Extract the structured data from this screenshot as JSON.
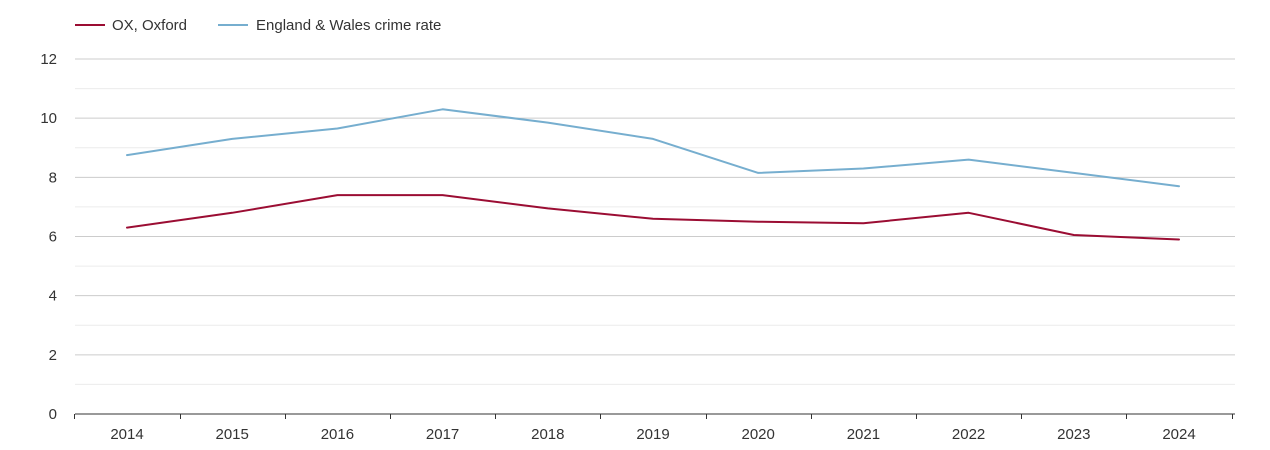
{
  "chart_data": {
    "type": "line",
    "title": "",
    "xlabel": "",
    "ylabel": "",
    "categories": [
      "2014",
      "2015",
      "2016",
      "2017",
      "2018",
      "2019",
      "2020",
      "2021",
      "2022",
      "2023",
      "2024"
    ],
    "ylim": [
      0,
      12
    ],
    "yticks": [
      0,
      2,
      4,
      6,
      8,
      10,
      12
    ],
    "grid": true,
    "legend_position": "top-left",
    "series": [
      {
        "name": "OX, Oxford",
        "color": "#9b0d33",
        "values": [
          6.3,
          6.8,
          7.4,
          7.4,
          6.95,
          6.6,
          6.5,
          6.45,
          6.8,
          6.05,
          5.9
        ]
      },
      {
        "name": "England & Wales crime rate",
        "color": "#76aecf",
        "values": [
          8.75,
          9.3,
          9.65,
          10.3,
          9.85,
          9.3,
          8.15,
          8.3,
          8.6,
          8.15,
          7.7
        ]
      }
    ]
  }
}
